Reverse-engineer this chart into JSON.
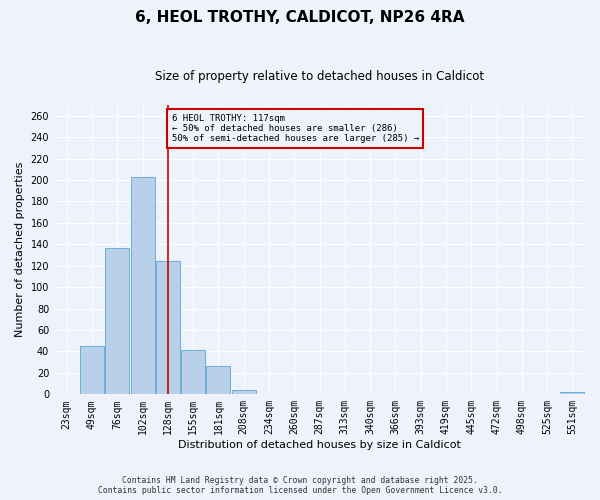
{
  "title": "6, HEOL TROTHY, CALDICOT, NP26 4RA",
  "subtitle": "Size of property relative to detached houses in Caldicot",
  "xlabel": "Distribution of detached houses by size in Caldicot",
  "ylabel": "Number of detached properties",
  "bin_labels": [
    "23sqm",
    "49sqm",
    "76sqm",
    "102sqm",
    "128sqm",
    "155sqm",
    "181sqm",
    "208sqm",
    "234sqm",
    "260sqm",
    "287sqm",
    "313sqm",
    "340sqm",
    "366sqm",
    "393sqm",
    "419sqm",
    "445sqm",
    "472sqm",
    "498sqm",
    "525sqm",
    "551sqm"
  ],
  "counts": [
    0,
    45,
    137,
    203,
    124,
    41,
    26,
    4,
    0,
    0,
    0,
    0,
    0,
    0,
    0,
    0,
    0,
    0,
    0,
    0,
    2
  ],
  "bar_color": "#b8d0ea",
  "bar_edge_color": "#6aafd6",
  "ylim": [
    0,
    270
  ],
  "yticks": [
    0,
    20,
    40,
    60,
    80,
    100,
    120,
    140,
    160,
    180,
    200,
    220,
    240,
    260
  ],
  "vline_index": 4,
  "vline_color": "#cc0000",
  "annotation_box_text": "6 HEOL TROTHY: 117sqm\n← 50% of detached houses are smaller (286)\n50% of semi-detached houses are larger (285) →",
  "annotation_box_color": "#cc0000",
  "footer_line1": "Contains HM Land Registry data © Crown copyright and database right 2025.",
  "footer_line2": "Contains public sector information licensed under the Open Government Licence v3.0.",
  "background_color": "#eef2fb",
  "grid_color": "#ffffff",
  "title_fontsize": 11,
  "subtitle_fontsize": 8.5,
  "axis_label_fontsize": 8,
  "tick_fontsize": 7
}
